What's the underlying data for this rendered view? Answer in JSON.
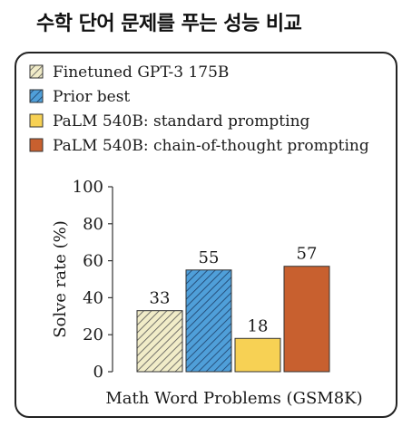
{
  "header": {
    "title": "수학 단어 문제를 푸는 성능 비교"
  },
  "chart_data": {
    "type": "bar",
    "categories": [
      "Math Word Problems (GSM8K)"
    ],
    "series": [
      {
        "name": "Finetuned GPT-3 175B",
        "value": 33,
        "label": "33",
        "fill": "#f1ecc8",
        "pattern": "diag-dark"
      },
      {
        "name": "Prior best",
        "value": 55,
        "label": "55",
        "fill": "#4f9fd9",
        "pattern": "diag-navy"
      },
      {
        "name": "PaLM 540B: standard prompting",
        "value": 18,
        "label": "18",
        "fill": "#f7d154",
        "pattern": "none"
      },
      {
        "name": "PaLM 540B: chain-of-thought prompting",
        "value": 57,
        "label": "57",
        "fill": "#c8602f",
        "pattern": "none"
      }
    ],
    "xlabel": "Math Word Problems (GSM8K)",
    "ylabel": "Solve rate (%)",
    "ylim": [
      0,
      100
    ],
    "yticks": [
      "0",
      "20",
      "40",
      "60",
      "80",
      "100"
    ],
    "legend_position": "top"
  }
}
